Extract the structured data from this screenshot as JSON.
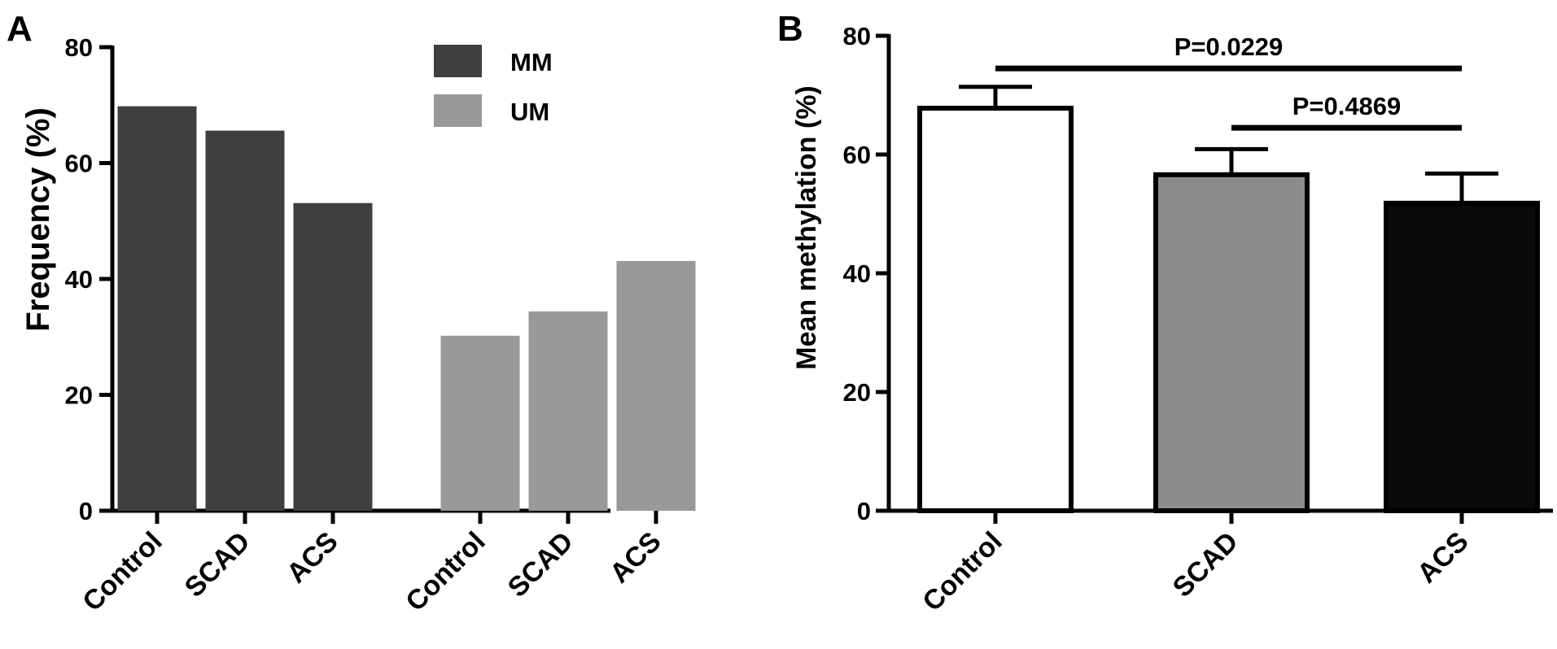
{
  "chart_data": [
    {
      "type": "bar",
      "panel": "A",
      "ylabel": "Frequency (%)",
      "ylim": [
        0,
        80
      ],
      "yticks": [
        0,
        20,
        40,
        60,
        80
      ],
      "legend": {
        "placement": "top-right"
      },
      "series": [
        {
          "name": "MM",
          "color": "#3f3f3f",
          "categories": [
            "Control",
            "SCAD",
            "ACS"
          ],
          "values": [
            69.8,
            65.6,
            53.1
          ]
        },
        {
          "name": "UM",
          "color": "#999999",
          "categories": [
            "Control",
            "SCAD",
            "ACS"
          ],
          "values": [
            30.2,
            34.4,
            43.1
          ]
        }
      ],
      "grid": false
    },
    {
      "type": "bar",
      "panel": "B",
      "ylabel": "Mean methylation (%)",
      "ylim": [
        0,
        80
      ],
      "yticks": [
        0,
        20,
        40,
        60,
        80
      ],
      "categories": [
        "Control",
        "SCAD",
        "ACS"
      ],
      "values": [
        67.8,
        56.6,
        51.8
      ],
      "error_upper": [
        71.4,
        60.9,
        56.8
      ],
      "colors": [
        "#ffffff",
        "#8c8c8c",
        "#0a0a0a"
      ],
      "annotations": [
        {
          "text": "P=0.0229",
          "from": "Control",
          "to": "ACS",
          "y": 74.5
        },
        {
          "text": "P=0.4869",
          "from": "SCAD",
          "to": "ACS",
          "y": 64.5
        }
      ],
      "grid": false
    }
  ]
}
